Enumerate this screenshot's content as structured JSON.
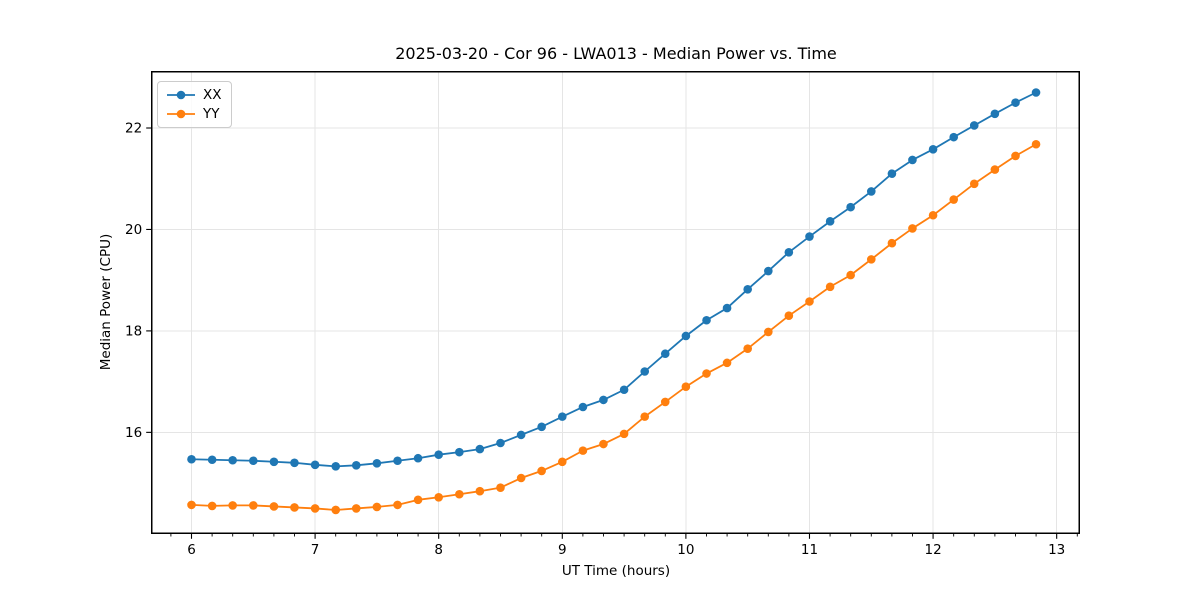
{
  "chart_data": {
    "type": "line",
    "title": "2025-03-20 - Cor 96 - LWA013 - Median Power vs. Time",
    "xlabel": "UT Time (hours)",
    "ylabel": "Median Power (CPU)",
    "xlim": [
      5.678,
      13.183
    ],
    "ylim": [
      14.01,
      23.11
    ],
    "xticks": [
      6,
      7,
      8,
      9,
      10,
      11,
      12,
      13
    ],
    "yticks": [
      16,
      18,
      20,
      22
    ],
    "x_minor_step": 0.1666667,
    "grid": true,
    "grid_color": "#e5e5e5",
    "spine_color": "#000000",
    "legend_position": "upper-left",
    "x": [
      6.0,
      6.167,
      6.333,
      6.5,
      6.667,
      6.833,
      7.0,
      7.167,
      7.333,
      7.5,
      7.667,
      7.833,
      8.0,
      8.167,
      8.333,
      8.5,
      8.667,
      8.833,
      9.0,
      9.167,
      9.333,
      9.5,
      9.667,
      9.833,
      10.0,
      10.167,
      10.333,
      10.5,
      10.667,
      10.833,
      11.0,
      11.167,
      11.333,
      11.5,
      11.667,
      11.833,
      12.0,
      12.167,
      12.333,
      12.5,
      12.667,
      12.833
    ],
    "series": [
      {
        "name": "XX",
        "color": "#1f77b4",
        "values": [
          15.47,
          15.46,
          15.45,
          15.44,
          15.42,
          15.4,
          15.36,
          15.33,
          15.35,
          15.39,
          15.44,
          15.49,
          15.56,
          15.61,
          15.67,
          15.79,
          15.95,
          16.11,
          16.31,
          16.5,
          16.64,
          16.84,
          17.2,
          17.55,
          17.9,
          18.21,
          18.45,
          18.82,
          19.18,
          19.55,
          19.86,
          20.16,
          20.44,
          20.75,
          21.1,
          21.37,
          21.58,
          21.82,
          22.05,
          22.28,
          22.5,
          22.7
        ]
      },
      {
        "name": "YY",
        "color": "#ff7f0e",
        "values": [
          14.57,
          14.55,
          14.56,
          14.56,
          14.54,
          14.52,
          14.5,
          14.47,
          14.5,
          14.53,
          14.57,
          14.67,
          14.72,
          14.78,
          14.84,
          14.91,
          15.1,
          15.24,
          15.42,
          15.64,
          15.77,
          15.97,
          16.31,
          16.6,
          16.9,
          17.16,
          17.37,
          17.65,
          17.98,
          18.3,
          18.58,
          18.87,
          19.1,
          19.41,
          19.73,
          20.02,
          20.28,
          20.59,
          20.9,
          21.18,
          21.45,
          21.68
        ]
      }
    ]
  }
}
